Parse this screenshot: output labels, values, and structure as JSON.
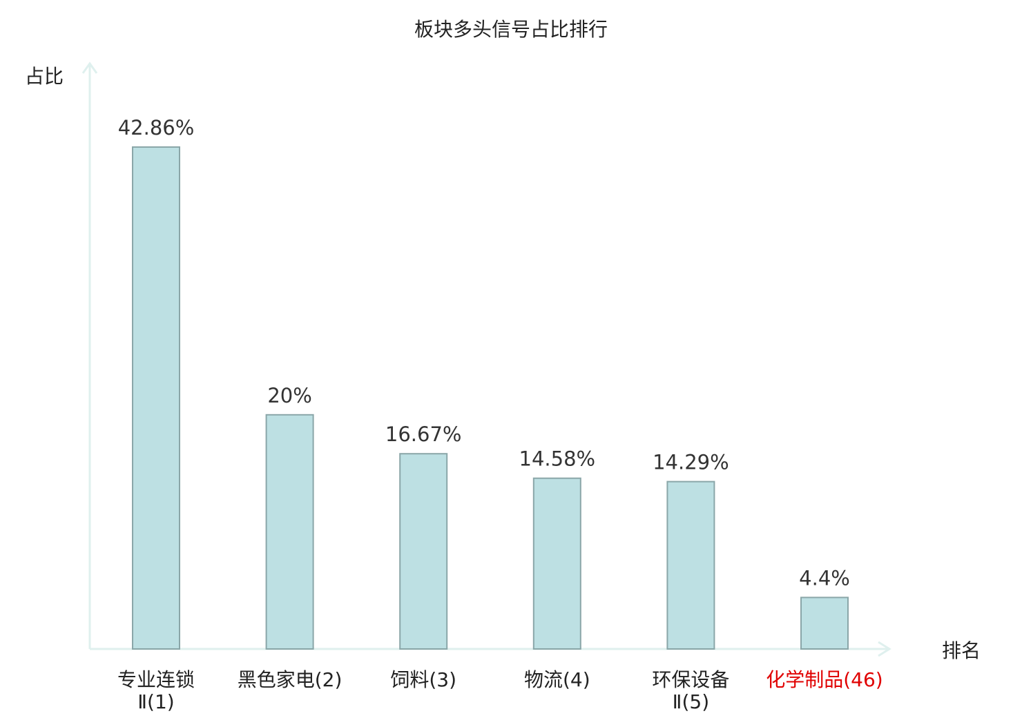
{
  "chart_data": {
    "type": "bar",
    "title": "板块多头信号占比排行",
    "ylabel": "占比",
    "xlabel": "排名",
    "ylim": [
      0,
      50
    ],
    "grid": false,
    "categories": [
      {
        "name_lines": [
          "专业连锁",
          "Ⅱ(1)"
        ],
        "highlight": false
      },
      {
        "name_lines": [
          "黑色家电(2)"
        ],
        "highlight": false
      },
      {
        "name_lines": [
          "饲料(3)"
        ],
        "highlight": false
      },
      {
        "name_lines": [
          "物流(4)"
        ],
        "highlight": false
      },
      {
        "name_lines": [
          "环保设备",
          "Ⅱ(5)"
        ],
        "highlight": false
      },
      {
        "name_lines": [
          "化学制品(46)"
        ],
        "highlight": true
      }
    ],
    "values": [
      42.86,
      20,
      16.67,
      14.58,
      14.29,
      4.4
    ],
    "value_labels": [
      "42.86%",
      "20%",
      "16.67%",
      "14.58%",
      "14.29%",
      "4.4%"
    ],
    "colors": {
      "bar_fill": "#bde0e3",
      "bar_stroke": "#8aa6a8",
      "axis": "#dff0ee",
      "label": "#333333",
      "highlight": "#e00000"
    }
  }
}
